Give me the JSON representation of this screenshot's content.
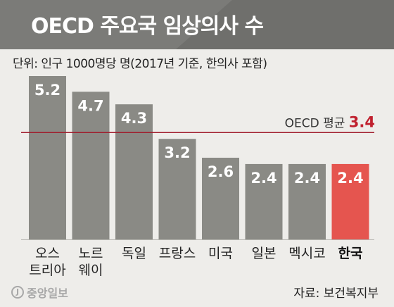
{
  "header": {
    "title": "OECD 주요국 임상의사 수",
    "unit_note": "단위: 인구 1000명당 명(2017년 기준, 한의사 포함)"
  },
  "chart_data": {
    "type": "bar",
    "title": "OECD 주요국 임상의사 수",
    "categories": [
      [
        "오스",
        "트리아"
      ],
      [
        "노르",
        "웨이"
      ],
      [
        "독일"
      ],
      [
        "프랑스"
      ],
      [
        "미국"
      ],
      [
        "일본"
      ],
      [
        "멕시코"
      ],
      [
        "한국"
      ]
    ],
    "values": [
      5.2,
      4.7,
      4.3,
      3.2,
      2.6,
      2.4,
      2.4,
      2.4
    ],
    "value_labels": [
      "5.2",
      "4.7",
      "4.3",
      "3.2",
      "2.6",
      "2.4",
      "2.4",
      "2.4"
    ],
    "highlight_index": 7,
    "reference_line": {
      "label": "OECD 평균",
      "value": 3.4,
      "value_label": "3.4"
    },
    "ylim": [
      0,
      5.2
    ],
    "grid": false,
    "colors": {
      "bar": "#8a8a85",
      "highlight": "#e5554f",
      "reference_line": "#a01c2c",
      "reference_value": "#c0202e",
      "title_band": "#7b7b78",
      "title_band_dark": "#6a6a67"
    }
  },
  "footer": {
    "logo_mark": "J",
    "logo": "중앙일보",
    "source": "자료: 보건복지부"
  }
}
